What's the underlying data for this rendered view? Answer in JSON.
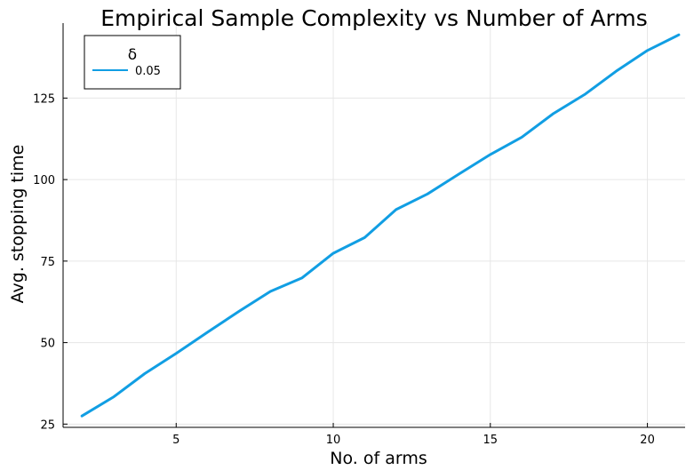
{
  "chart_data": {
    "type": "line",
    "title": "Empirical Sample Complexity vs Number of Arms",
    "xlabel": "No. of arms",
    "ylabel": "Avg. stopping time",
    "xlim": [
      1.4,
      21.2
    ],
    "ylim": [
      24,
      148
    ],
    "xticks": [
      5,
      10,
      15,
      20
    ],
    "yticks": [
      25,
      50,
      75,
      100,
      125
    ],
    "grid": true,
    "legend": {
      "title": "δ",
      "placement": "top-left",
      "entries": [
        "0.05"
      ]
    },
    "series": [
      {
        "name": "0.05",
        "color": "#119ee3",
        "x": [
          2,
          3,
          4,
          5,
          6,
          7,
          8,
          9,
          10,
          11,
          12,
          13,
          14,
          15,
          16,
          17,
          18,
          19,
          20,
          21
        ],
        "y": [
          27.5,
          33.3,
          40.5,
          46.7,
          53.2,
          59.6,
          65.7,
          69.8,
          77.4,
          82.2,
          90.8,
          95.6,
          101.7,
          107.7,
          113.0,
          120.2,
          126.1,
          133.2,
          139.6,
          144.4
        ]
      }
    ]
  }
}
